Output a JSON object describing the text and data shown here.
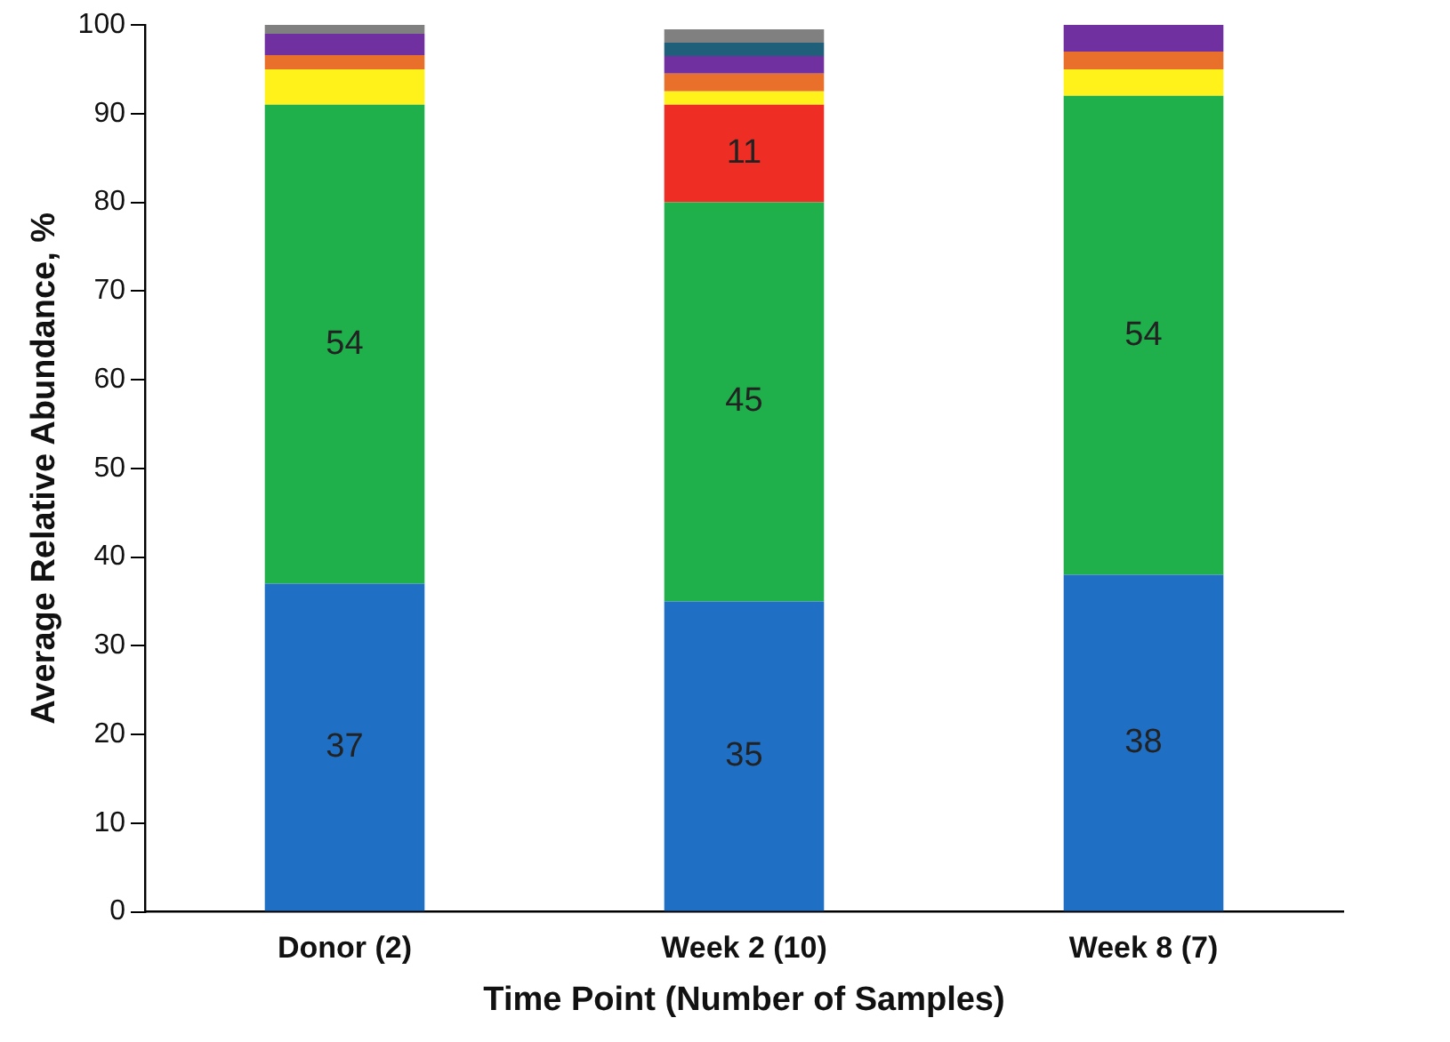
{
  "chart_data": {
    "type": "bar",
    "stacked": true,
    "xlabel": "Time Point (Number of Samples)",
    "ylabel": "Average Relative Abundance, %",
    "categories": [
      "Donor (2)",
      "Week 2 (10)",
      "Week 8 (7)"
    ],
    "ylim": [
      0,
      100
    ],
    "yticks": [
      0,
      10,
      20,
      30,
      40,
      50,
      60,
      70,
      80,
      90,
      100
    ],
    "grid": false,
    "legend": false,
    "series": [
      {
        "color": "#1f6fc4",
        "values": [
          37,
          35,
          38
        ],
        "value_labels": [
          "37",
          "35",
          "38"
        ]
      },
      {
        "color": "#1fb04b",
        "values": [
          54,
          45,
          54
        ],
        "value_labels": [
          "54",
          "45",
          "54"
        ]
      },
      {
        "color": "#ee2e24",
        "values": [
          0,
          11,
          0
        ],
        "value_labels": [
          null,
          "11",
          null
        ]
      },
      {
        "color": "#fff21a",
        "values": [
          4,
          1.5,
          3
        ]
      },
      {
        "color": "#e8702a",
        "values": [
          1.6,
          2,
          2
        ]
      },
      {
        "color": "#7030a0",
        "values": [
          2.4,
          2,
          3
        ]
      },
      {
        "color": "#1f5f7a",
        "values": [
          0,
          1.5,
          0
        ]
      },
      {
        "color": "#808080",
        "values": [
          1,
          1.5,
          0
        ]
      }
    ]
  }
}
